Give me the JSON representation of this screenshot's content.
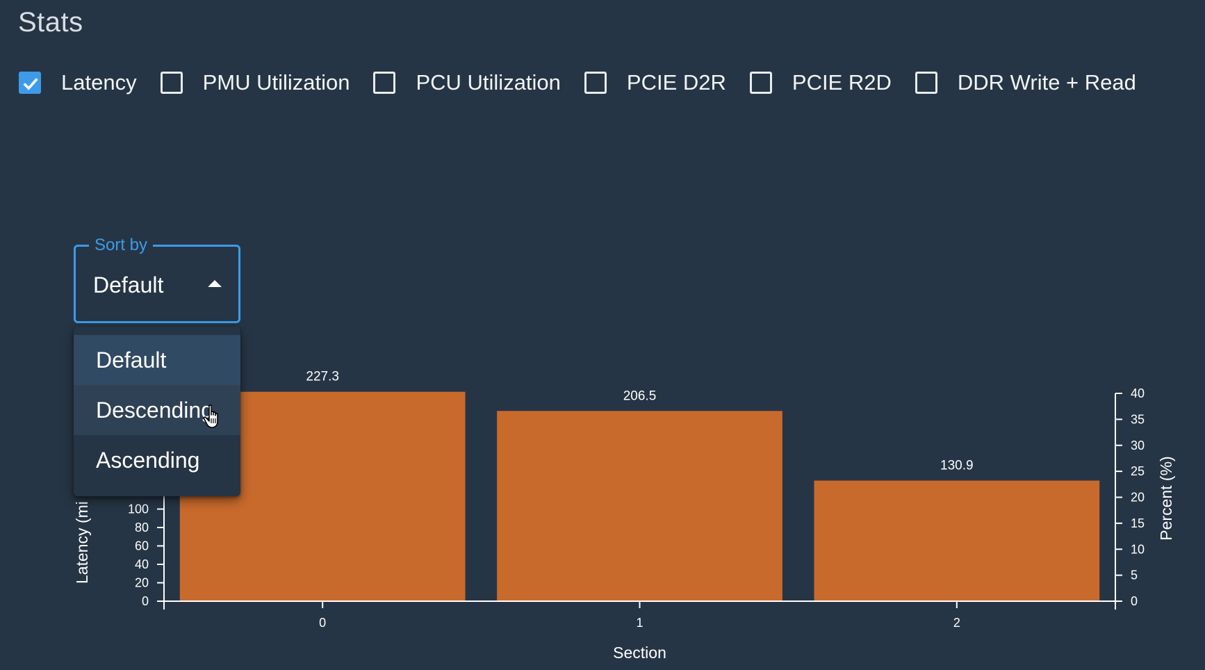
{
  "page": {
    "title": "Stats"
  },
  "metrics": [
    {
      "label": "Latency",
      "checked": true
    },
    {
      "label": "PMU Utilization",
      "checked": false
    },
    {
      "label": "PCU Utilization",
      "checked": false
    },
    {
      "label": "PCIE D2R",
      "checked": false
    },
    {
      "label": "PCIE R2D",
      "checked": false
    },
    {
      "label": "DDR Write + Read",
      "checked": false
    }
  ],
  "sort": {
    "legend": "Sort by",
    "value": "Default",
    "options": [
      "Default",
      "Descending",
      "Ascending"
    ],
    "selected_index": 0,
    "hover_index": 1
  },
  "chart_data": {
    "type": "bar",
    "categories": [
      "0",
      "1",
      "2"
    ],
    "values": [
      227.3,
      206.5,
      130.9
    ],
    "value_labels": [
      "227.3",
      "206.5",
      "130.9"
    ],
    "xlabel": "Section",
    "ylabel_left": "Latency (mi",
    "ylabel_right": "Percent (%)",
    "left_ticks_visible": [
      0,
      20,
      40,
      60,
      80,
      100
    ],
    "right_ticks": [
      0,
      5,
      10,
      15,
      20,
      25,
      30,
      35,
      40
    ],
    "right_ylim": [
      0,
      40
    ],
    "bar_color": "#c96a2d"
  },
  "colors": {
    "background": "#263545",
    "accent": "#3d9be9"
  }
}
